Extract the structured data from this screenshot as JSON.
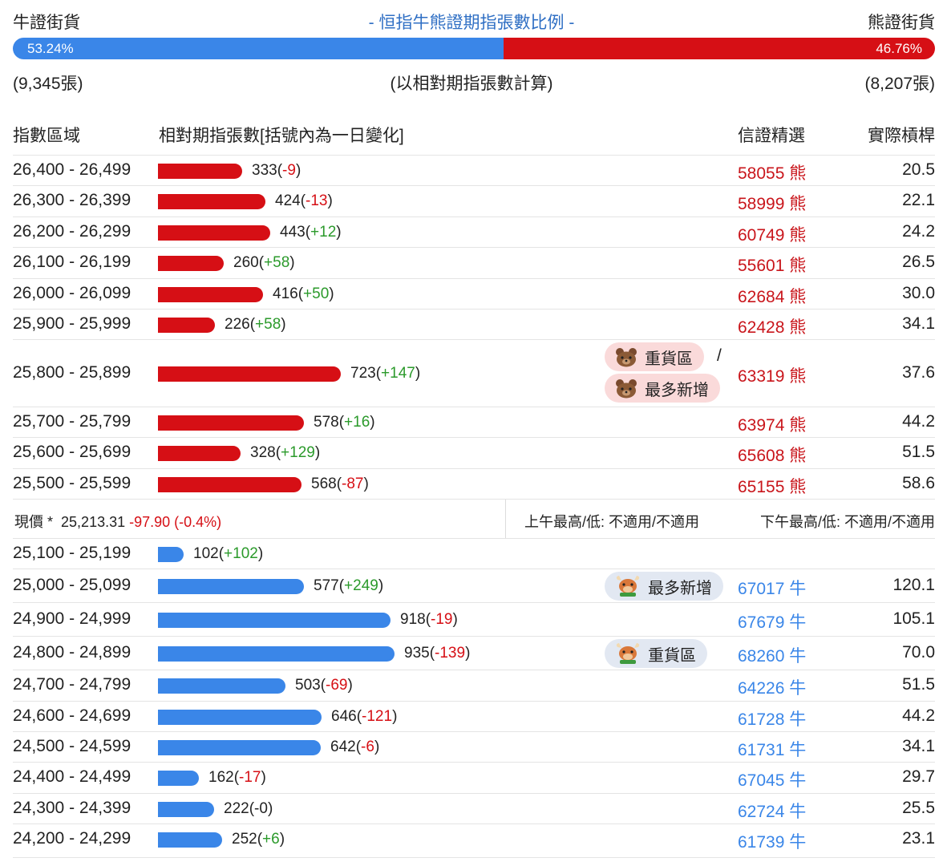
{
  "header": {
    "bull_label": "牛證街貨",
    "title": "- 恒指牛熊證期指張數比例 -",
    "bear_label": "熊證街貨",
    "bull_pct": "53.24%",
    "bear_pct": "46.76%",
    "bull_fraction": 0.5324,
    "bull_count": "(9,345張)",
    "calc_note": "(以相對期指張數計算)",
    "bear_count": "(8,207張)"
  },
  "columns": {
    "range": "指數區域",
    "count": "相對期指張數[括號內為一日變化]",
    "pick": "信證精選",
    "leverage": "實際槓桿"
  },
  "colors": {
    "bull": "#3a86e8",
    "bear": "#d60f15",
    "up": "#2b9a2b",
    "down": "#d60f15"
  },
  "bar_scale_max": 935,
  "bear_rows": [
    {
      "range": "26,400 - 26,499",
      "count": "333",
      "change": "-9",
      "count_value": 333,
      "code": "58055",
      "code_type": "熊",
      "leverage": "20.5"
    },
    {
      "range": "26,300 - 26,399",
      "count": "424",
      "change": "-13",
      "count_value": 424,
      "code": "58999",
      "code_type": "熊",
      "leverage": "22.1"
    },
    {
      "range": "26,200 - 26,299",
      "count": "443",
      "change": "+12",
      "count_value": 443,
      "code": "60749",
      "code_type": "熊",
      "leverage": "24.2"
    },
    {
      "range": "26,100 - 26,199",
      "count": "260",
      "change": "+58",
      "count_value": 260,
      "code": "55601",
      "code_type": "熊",
      "leverage": "26.5"
    },
    {
      "range": "26,000 - 26,099",
      "count": "416",
      "change": "+50",
      "count_value": 416,
      "code": "62684",
      "code_type": "熊",
      "leverage": "30.0"
    },
    {
      "range": "25,900 - 25,999",
      "count": "226",
      "change": "+58",
      "count_value": 226,
      "code": "62428",
      "code_type": "熊",
      "leverage": "34.1"
    },
    {
      "range": "25,800 - 25,899",
      "count": "723",
      "change": "+147",
      "count_value": 723,
      "code": "63319",
      "code_type": "熊",
      "leverage": "37.6",
      "tags": [
        "重貨區",
        "最多新增"
      ],
      "tag_sep": "/",
      "tag_icon": "bear-icon"
    },
    {
      "range": "25,700 - 25,799",
      "count": "578",
      "change": "+16",
      "count_value": 578,
      "code": "63974",
      "code_type": "熊",
      "leverage": "44.2"
    },
    {
      "range": "25,600 - 25,699",
      "count": "328",
      "change": "+129",
      "count_value": 328,
      "code": "65608",
      "code_type": "熊",
      "leverage": "51.5"
    },
    {
      "range": "25,500 - 25,599",
      "count": "568",
      "change": "-87",
      "count_value": 568,
      "code": "65155",
      "code_type": "熊",
      "leverage": "58.6"
    }
  ],
  "spot": {
    "label": "現價 *",
    "price": "25,213.31",
    "change": "-97.90 (-0.4%)",
    "am": "上午最高/低: 不適用/不適用",
    "pm": "下午最高/低: 不適用/不適用"
  },
  "bull_rows": [
    {
      "range": "25,100 - 25,199",
      "count": "102",
      "change": "+102",
      "count_value": 102,
      "code": "",
      "code_type": "",
      "leverage": ""
    },
    {
      "range": "25,000 - 25,099",
      "count": "577",
      "change": "+249",
      "count_value": 577,
      "code": "67017",
      "code_type": "牛",
      "leverage": "120.1",
      "tags": [
        "最多新增"
      ],
      "tag_icon": "bull-icon"
    },
    {
      "range": "24,900 - 24,999",
      "count": "918",
      "change": "-19",
      "count_value": 918,
      "code": "67679",
      "code_type": "牛",
      "leverage": "105.1"
    },
    {
      "range": "24,800 - 24,899",
      "count": "935",
      "change": "-139",
      "count_value": 935,
      "code": "68260",
      "code_type": "牛",
      "leverage": "70.0",
      "tags": [
        "重貨區"
      ],
      "tag_icon": "bull-icon"
    },
    {
      "range": "24,700 - 24,799",
      "count": "503",
      "change": "-69",
      "count_value": 503,
      "code": "64226",
      "code_type": "牛",
      "leverage": "51.5"
    },
    {
      "range": "24,600 - 24,699",
      "count": "646",
      "change": "-121",
      "count_value": 646,
      "code": "61728",
      "code_type": "牛",
      "leverage": "44.2"
    },
    {
      "range": "24,500 - 24,599",
      "count": "642",
      "change": "-6",
      "count_value": 642,
      "code": "61731",
      "code_type": "牛",
      "leverage": "34.1"
    },
    {
      "range": "24,400 - 24,499",
      "count": "162",
      "change": "-17",
      "count_value": 162,
      "code": "67045",
      "code_type": "牛",
      "leverage": "29.7"
    },
    {
      "range": "24,300 - 24,399",
      "count": "222",
      "change": "-0",
      "count_value": 222,
      "code": "62724",
      "code_type": "牛",
      "leverage": "25.5"
    },
    {
      "range": "24,200 - 24,299",
      "count": "252",
      "change": "+6",
      "count_value": 252,
      "code": "61739",
      "code_type": "牛",
      "leverage": "23.1"
    }
  ]
}
